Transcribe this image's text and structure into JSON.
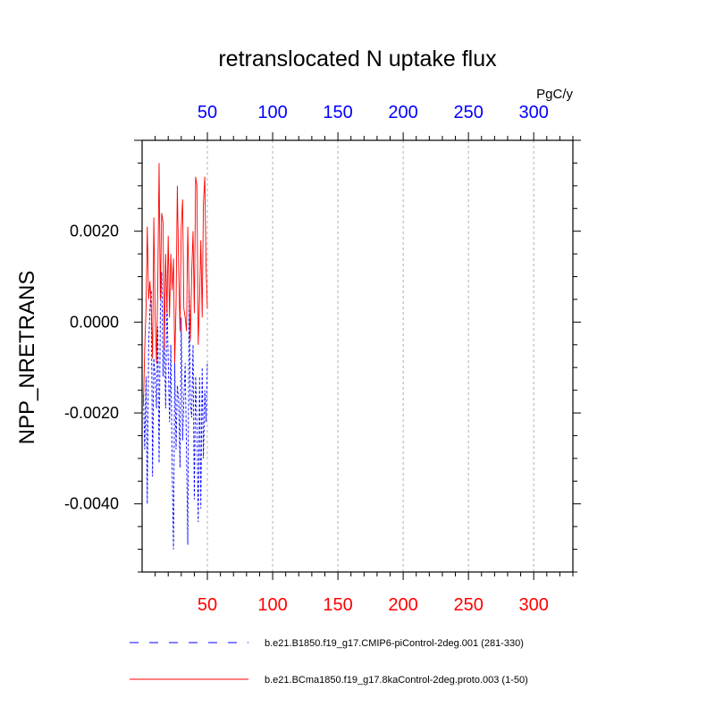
{
  "chart_data": {
    "type": "line",
    "title": "retranslocated N uptake flux",
    "units": "PgC/y",
    "ylabel": "NPP_NRETRANS",
    "xlim": [
      0,
      330
    ],
    "ylim": [
      -0.0055,
      0.004
    ],
    "x_ticks_bottom": [
      {
        "value": 50,
        "label": "50"
      },
      {
        "value": 100,
        "label": "100"
      },
      {
        "value": 150,
        "label": "150"
      },
      {
        "value": 200,
        "label": "200"
      },
      {
        "value": 250,
        "label": "250"
      },
      {
        "value": 300,
        "label": "300"
      }
    ],
    "x_ticks_top": [
      {
        "value": 50,
        "label": "50"
      },
      {
        "value": 100,
        "label": "100"
      },
      {
        "value": 150,
        "label": "150"
      },
      {
        "value": 200,
        "label": "200"
      },
      {
        "value": 250,
        "label": "250"
      },
      {
        "value": 300,
        "label": "300"
      }
    ],
    "y_ticks": [
      {
        "value": 0.002,
        "label": "0.0020"
      },
      {
        "value": 0.0,
        "label": "0.0000"
      },
      {
        "value": -0.002,
        "label": "-0.0020"
      },
      {
        "value": -0.004,
        "label": "-0.0040"
      }
    ],
    "bottom_axis_color": "#ff0000",
    "top_axis_color": "#0000ff",
    "series": [
      {
        "name": "b.e21.B1850.f19_g17.CMIP6-piControl-2deg.001 (281-330)",
        "color": "#0000ff",
        "style": "dashed",
        "x": [
          1,
          2,
          3,
          4,
          5,
          6,
          7,
          8,
          9,
          10,
          11,
          12,
          13,
          14,
          15,
          16,
          17,
          18,
          19,
          20,
          21,
          22,
          23,
          24,
          25,
          26,
          27,
          28,
          29,
          30,
          31,
          32,
          33,
          34,
          35,
          36,
          37,
          38,
          39,
          40,
          41,
          42,
          43,
          44,
          45,
          46,
          47,
          48,
          49,
          50
        ],
        "values": [
          -0.0016,
          -0.0028,
          -0.0012,
          -0.004,
          -0.0005,
          0.0003,
          0.0007,
          -0.0034,
          -0.0008,
          -0.0012,
          -0.0019,
          -0.0001,
          -0.0031,
          0.0002,
          0.0011,
          -0.0012,
          -0.0003,
          -0.0019,
          0.0005,
          -0.0008,
          -0.0022,
          -0.0005,
          -0.0032,
          -0.005,
          -0.0009,
          -0.0028,
          -0.0014,
          -0.0017,
          -0.0032,
          0.0001,
          -0.0026,
          -0.0017,
          -0.0009,
          -0.0029,
          -0.0049,
          0.0007,
          -0.0018,
          -0.0021,
          -0.0005,
          -0.0039,
          -0.0012,
          -0.0022,
          -0.0044,
          -0.0012,
          -0.0041,
          -0.001,
          -0.003,
          -0.0015,
          -0.0022,
          -0.0009
        ]
      },
      {
        "name": "b.e21.BCma1850.f19_g17.8kaControl-2deg.proto.003 (1-50)",
        "color": "#ff0000",
        "style": "solid",
        "x": [
          1,
          2,
          3,
          4,
          5,
          6,
          7,
          8,
          9,
          10,
          11,
          12,
          13,
          14,
          15,
          16,
          17,
          18,
          19,
          20,
          21,
          22,
          23,
          24,
          25,
          26,
          27,
          28,
          29,
          30,
          31,
          32,
          33,
          34,
          35,
          36,
          37,
          38,
          39,
          40,
          41,
          42,
          43,
          44,
          45,
          46,
          47,
          48,
          49,
          50
        ],
        "values": [
          -0.0018,
          -0.0006,
          0.0003,
          0.0021,
          0.0005,
          0.0009,
          0.0003,
          -0.0008,
          0.0023,
          0.0001,
          -0.0009,
          0.0008,
          0.0035,
          0.0005,
          0.0024,
          0.0022,
          -0.0006,
          0.0015,
          0.0002,
          0.0019,
          0.0001,
          0.0015,
          0.0007,
          0.0014,
          -0.0009,
          0.0004,
          0.003,
          0.0012,
          -0.0002,
          0.0021,
          0.0027,
          0.0003,
          0.0001,
          -0.0002,
          0.0021,
          0.0006,
          -0.0004,
          0.0011,
          0.002,
          0.0002,
          0.0032,
          0.003,
          -0.0005,
          0.0005,
          0.0018,
          0.0001,
          0.0026,
          0.0032,
          0.0012,
          0.0003
        ]
      }
    ]
  }
}
